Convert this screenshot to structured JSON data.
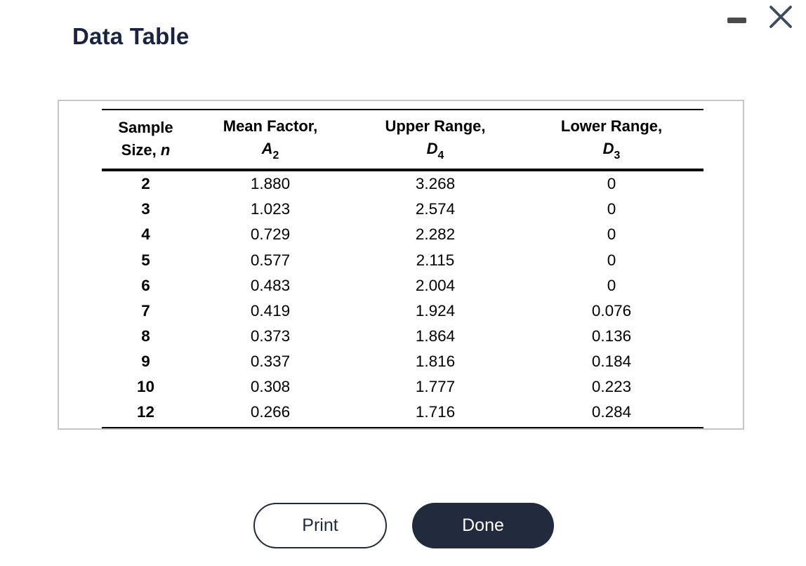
{
  "window": {
    "title": "Data Table"
  },
  "table": {
    "columns": [
      {
        "line1": "Sample",
        "line2_prefix": "Size, ",
        "symbol": "n",
        "subscript": ""
      },
      {
        "line1": "Mean Factor,",
        "line2_prefix": "",
        "symbol": "A",
        "subscript": "2"
      },
      {
        "line1": "Upper Range,",
        "line2_prefix": "",
        "symbol": "D",
        "subscript": "4"
      },
      {
        "line1": "Lower Range,",
        "line2_prefix": "",
        "symbol": "D",
        "subscript": "3"
      }
    ],
    "rows": [
      [
        "2",
        "1.880",
        "3.268",
        "0"
      ],
      [
        "3",
        "1.023",
        "2.574",
        "0"
      ],
      [
        "4",
        "0.729",
        "2.282",
        "0"
      ],
      [
        "5",
        "0.577",
        "2.115",
        "0"
      ],
      [
        "6",
        "0.483",
        "2.004",
        "0"
      ],
      [
        "7",
        "0.419",
        "1.924",
        "0.076"
      ],
      [
        "8",
        "0.373",
        "1.864",
        "0.136"
      ],
      [
        "9",
        "0.337",
        "1.816",
        "0.184"
      ],
      [
        "10",
        "0.308",
        "1.777",
        "0.223"
      ],
      [
        "12",
        "0.266",
        "1.716",
        "0.284"
      ]
    ]
  },
  "buttons": {
    "print": "Print",
    "done": "Done"
  },
  "colors": {
    "title_text": "#1b2342",
    "accent_dark": "#222b3e",
    "table_rule": "#000000",
    "panel_border": "#c6c6c6",
    "minimize_icon": "#4a4a4a",
    "close_icon": "#3b4b61"
  }
}
